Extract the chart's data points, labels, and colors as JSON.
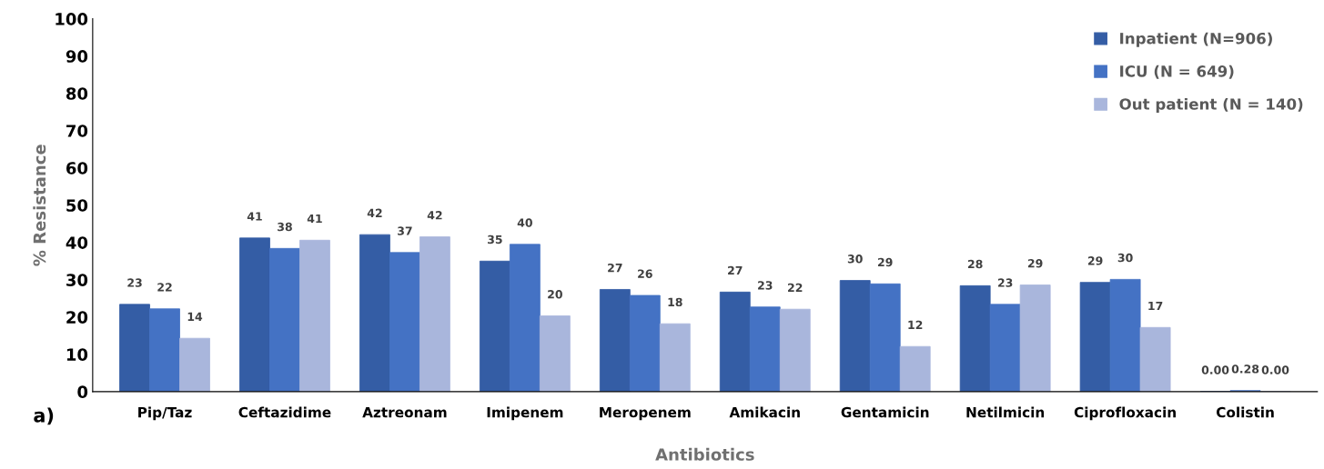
{
  "chart_data": {
    "type": "bar",
    "xlabel": "Antibiotics",
    "ylabel": "% Resistance",
    "categories": [
      "Pip/Taz",
      "Ceftazidime",
      "Aztreonam",
      "Imipenem",
      "Meropenem",
      "Amikacin",
      "Gentamicin",
      "Netilmicin",
      "Ciprofloxacin",
      "Colistin"
    ],
    "series": [
      {
        "name": "Inpatient (N=906)",
        "color": "#345da5",
        "values": [
          23.4,
          41.2,
          42.1,
          35.0,
          27.4,
          26.7,
          29.8,
          28.4,
          29.3,
          0
        ],
        "value_labels": [
          "23",
          "41",
          "42",
          "35",
          "27",
          "27",
          "30",
          "28",
          "29",
          "0.00"
        ]
      },
      {
        "name": "ICU (N = 649)",
        "color": "#4472c4",
        "values": [
          22.2,
          38.4,
          37.3,
          39.5,
          25.8,
          22.7,
          28.9,
          23.4,
          30.1,
          0.28
        ],
        "value_labels": [
          "22",
          "38",
          "37",
          "40",
          "26",
          "23",
          "29",
          "23",
          "30",
          "0.28"
        ]
      },
      {
        "name": "Out patient (N = 140)",
        "color": "#a9b6dc",
        "values": [
          14.3,
          40.6,
          41.5,
          20.3,
          18.2,
          22.1,
          12.1,
          28.6,
          17.2,
          0
        ],
        "value_labels": [
          "14",
          "41",
          "42",
          "20",
          "18",
          "22",
          "12",
          "29",
          "17",
          "0.00"
        ]
      }
    ],
    "ylim": [
      0,
      100
    ],
    "yticks": [
      0,
      10,
      20,
      30,
      40,
      50,
      60,
      70,
      80,
      90,
      100
    ],
    "grid": false,
    "legend": "top right",
    "annotations": [
      "a)"
    ]
  }
}
